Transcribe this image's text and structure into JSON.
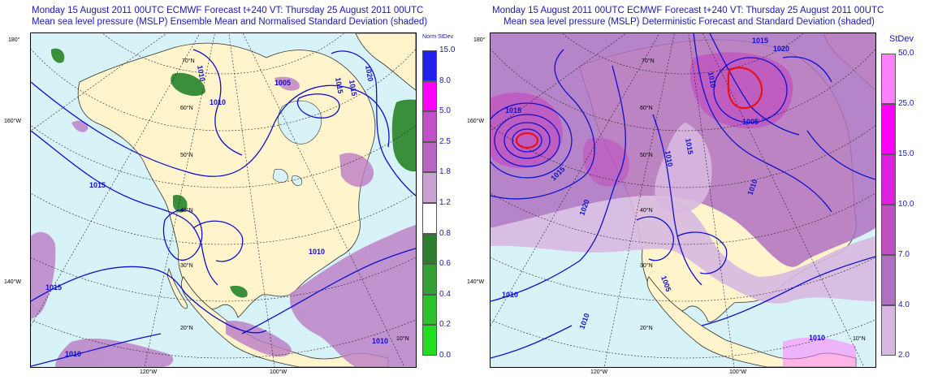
{
  "left_panel": {
    "title_line1": "Monday 15 August 2011 00UTC ECMWF Forecast t+240  VT: Thursday 25 August 2011 00UTC",
    "title_line2": "Mean sea level pressure (MSLP) Ensemble Mean and Normalised Standard Deviation (shaded)",
    "legend_title": "Norm StDev",
    "legend_levels": [
      "15.0",
      "8.0",
      "5.0",
      "2.5",
      "1.8",
      "1.2",
      "0.8",
      "0.6",
      "0.4",
      "0.2",
      "0.0"
    ],
    "legend_colors": [
      "#2020ee",
      "#ff00ff",
      "#c050c8",
      "#b865c2",
      "#c8a0d2",
      "#ffffff",
      "#2e7d2e",
      "#35a035",
      "#2fc02f",
      "#22dd22"
    ],
    "contour_labels": [
      "1010",
      "1015",
      "1010",
      "1005",
      "1020",
      "1015",
      "1015",
      "1010",
      "1010",
      "1015",
      "1010"
    ],
    "lat_labels": [
      "70°N",
      "60°N",
      "50°N",
      "40°N",
      "30°N",
      "20°N",
      "10°N"
    ],
    "lon_labels_left": [
      "180°",
      "160°W",
      "140°W"
    ],
    "lon_labels_bottom": [
      "120°W",
      "100°W"
    ]
  },
  "right_panel": {
    "title_line1": "Monday 15 August 2011 00UTC ECMWF Forecast t+240  VT: Thursday 25 August 2011 00UTC",
    "title_line2": "Mean sea level pressure (MSLP) Deterministic Forecast and Standard Deviation (shaded)",
    "legend_title": "StDev",
    "legend_levels": [
      "50.0",
      "25.0",
      "15.0",
      "10.0",
      "7.0",
      "4.0",
      "2.0"
    ],
    "legend_colors": [
      "#ff80ff",
      "#ff00ff",
      "#e020e0",
      "#c050c0",
      "#b070c0",
      "#d8b8e0"
    ],
    "contour_labels": [
      "1015",
      "1020",
      "1015",
      "1010",
      "1005",
      "1015",
      "1010",
      "1020",
      "1010",
      "1015",
      "1010",
      "1010",
      "1005",
      "1010"
    ],
    "lat_labels": [
      "70°N",
      "60°N",
      "50°N",
      "40°N",
      "30°N",
      "20°N",
      "10°N"
    ],
    "lon_labels_left": [
      "180°",
      "160°W",
      "140°W"
    ],
    "lon_labels_bottom": [
      "120°W",
      "100°W"
    ]
  }
}
